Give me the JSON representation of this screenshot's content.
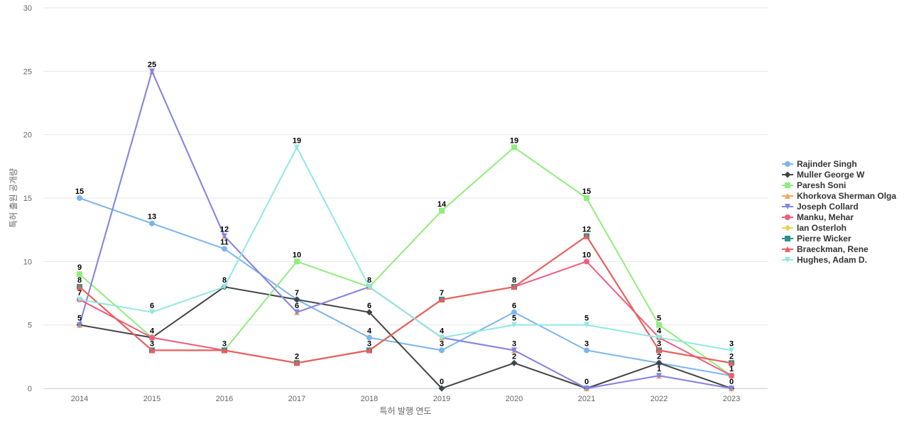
{
  "chart_data": {
    "type": "line",
    "title": "",
    "xlabel": "특허 발행 연도",
    "ylabel": "특허 출원 공개량",
    "ylim": [
      0,
      30
    ],
    "yticks": [
      0,
      5,
      10,
      15,
      20,
      25,
      30
    ],
    "categories": [
      "2014",
      "2015",
      "2016",
      "2017",
      "2018",
      "2019",
      "2020",
      "2021",
      "2022",
      "2023"
    ],
    "legend_position": "right",
    "series": [
      {
        "name": "Rajinder Singh",
        "color": "#7cb5ec",
        "marker": "circle",
        "values": [
          15,
          13,
          11,
          7,
          4,
          3,
          6,
          3,
          2,
          1
        ]
      },
      {
        "name": "Muller George W",
        "color": "#434348",
        "marker": "diamond",
        "values": [
          5,
          4,
          8,
          7,
          6,
          0,
          2,
          0,
          2,
          0
        ]
      },
      {
        "name": "Paresh Soni",
        "color": "#90ed7d",
        "marker": "square",
        "values": [
          9,
          4,
          3,
          10,
          8,
          14,
          19,
          15,
          5,
          1
        ]
      },
      {
        "name": "Khorkova Sherman Olga",
        "color": "#f7a35c",
        "marker": "triangle",
        "values": [
          5,
          25,
          12,
          6,
          8,
          4,
          3,
          0,
          1,
          0
        ]
      },
      {
        "name": "Joseph Collard",
        "color": "#8085e9",
        "marker": "triangle-down",
        "values": [
          5,
          25,
          12,
          6,
          8,
          4,
          3,
          0,
          1,
          0
        ]
      },
      {
        "name": "Manku, Mehar",
        "color": "#f15c80",
        "marker": "circle",
        "values": [
          7,
          4,
          3,
          2,
          3,
          7,
          8,
          10,
          4,
          1
        ]
      },
      {
        "name": "Ian Osterloh",
        "color": "#e4d354",
        "marker": "diamond",
        "values": [
          8,
          3,
          3,
          2,
          3,
          7,
          8,
          12,
          3,
          2
        ]
      },
      {
        "name": "Pierre Wicker",
        "color": "#2b908f",
        "marker": "square",
        "values": [
          8,
          3,
          3,
          2,
          3,
          7,
          8,
          12,
          3,
          2
        ]
      },
      {
        "name": "Braeckman, Rene",
        "color": "#f45b5b",
        "marker": "triangle",
        "values": [
          8,
          3,
          3,
          2,
          3,
          7,
          8,
          12,
          3,
          2
        ]
      },
      {
        "name": "Hughes, Adam D.",
        "color": "#91e8e1",
        "marker": "triangle-down",
        "values": [
          7,
          6,
          8,
          19,
          8,
          4,
          5,
          5,
          4,
          3
        ]
      }
    ],
    "data_labels": [
      [
        "15",
        "5",
        "9",
        "8",
        "7"
      ],
      [
        "25",
        "13",
        "6",
        "4",
        "3"
      ],
      [
        "12",
        "11",
        "8",
        "3"
      ],
      [
        "19",
        "10",
        "7",
        "6",
        "2"
      ],
      [
        "8",
        "6",
        "4",
        "3"
      ],
      [
        "14",
        "7",
        "4",
        "3",
        "0"
      ],
      [
        "19",
        "8",
        "6",
        "5",
        "3",
        "2"
      ],
      [
        "15",
        "12",
        "10",
        "5",
        "3",
        "0"
      ],
      [
        "5",
        "4",
        "3",
        "2",
        "1"
      ],
      [
        "3",
        "2",
        "1",
        "0"
      ]
    ]
  }
}
